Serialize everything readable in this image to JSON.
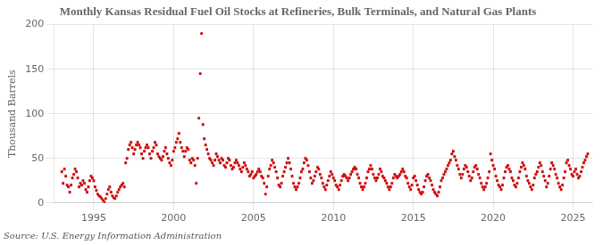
{
  "chart_data": {
    "type": "scatter",
    "title": "Monthly Kansas Residual Fuel Oil Stocks at Refineries, Bulk Terminals, and Natural Gas Plants",
    "y_label": "Thousand Barrels",
    "annotations": [
      "Source: U.S. Energy Information Administration"
    ],
    "color": "#cc0000",
    "marker": "square",
    "grid": true,
    "xlim": [
      1992.5,
      2026.2
    ],
    "xticks": [
      1995,
      2000,
      2005,
      2010,
      2015,
      2020,
      2025
    ],
    "ylim": [
      0,
      200
    ],
    "yticks": [
      0,
      50,
      100,
      150,
      200
    ],
    "x": [
      1993,
      1993.0833,
      1993.1667,
      1993.25,
      1993.3333,
      1993.4167,
      1993.5,
      1993.5833,
      1993.6667,
      1993.75,
      1993.8333,
      1993.9167,
      1994,
      1994.0833,
      1994.1667,
      1994.25,
      1994.3333,
      1994.4167,
      1994.5,
      1994.5833,
      1994.6667,
      1994.75,
      1994.8333,
      1994.9167,
      1995,
      1995.0833,
      1995.1667,
      1995.25,
      1995.3333,
      1995.4167,
      1995.5,
      1995.5833,
      1995.6667,
      1995.75,
      1995.8333,
      1995.9167,
      1996,
      1996.0833,
      1996.1667,
      1996.25,
      1996.3333,
      1996.4167,
      1996.5,
      1996.5833,
      1996.6667,
      1996.75,
      1996.8333,
      1996.9167,
      1997,
      1997.0833,
      1997.1667,
      1997.25,
      1997.3333,
      1997.4167,
      1997.5,
      1997.5833,
      1997.6667,
      1997.75,
      1997.8333,
      1997.9167,
      1998,
      1998.0833,
      1998.1667,
      1998.25,
      1998.3333,
      1998.4167,
      1998.5,
      1998.5833,
      1998.6667,
      1998.75,
      1998.8333,
      1998.9167,
      1999,
      1999.0833,
      1999.1667,
      1999.25,
      1999.3333,
      1999.4167,
      1999.5,
      1999.5833,
      1999.6667,
      1999.75,
      1999.8333,
      1999.9167,
      2000,
      2000.0833,
      2000.1667,
      2000.25,
      2000.3333,
      2000.4167,
      2000.5,
      2000.5833,
      2000.6667,
      2000.75,
      2000.8333,
      2000.9167,
      2001,
      2001.0833,
      2001.1667,
      2001.25,
      2001.3333,
      2001.4167,
      2001.5,
      2001.5833,
      2001.6667,
      2001.75,
      2001.8333,
      2001.9167,
      2002,
      2002.0833,
      2002.1667,
      2002.25,
      2002.3333,
      2002.4167,
      2002.5,
      2002.5833,
      2002.6667,
      2002.75,
      2002.8333,
      2002.9167,
      2003,
      2003.0833,
      2003.1667,
      2003.25,
      2003.3333,
      2003.4167,
      2003.5,
      2003.5833,
      2003.6667,
      2003.75,
      2003.8333,
      2003.9167,
      2004,
      2004.0833,
      2004.1667,
      2004.25,
      2004.3333,
      2004.4167,
      2004.5,
      2004.5833,
      2004.6667,
      2004.75,
      2004.8333,
      2004.9167,
      2005,
      2005.0833,
      2005.1667,
      2005.25,
      2005.3333,
      2005.4167,
      2005.5,
      2005.5833,
      2005.6667,
      2005.75,
      2005.8333,
      2005.9167,
      2006,
      2006.0833,
      2006.1667,
      2006.25,
      2006.3333,
      2006.4167,
      2006.5,
      2006.5833,
      2006.6667,
      2006.75,
      2006.8333,
      2006.9167,
      2007,
      2007.0833,
      2007.1667,
      2007.25,
      2007.3333,
      2007.4167,
      2007.5,
      2007.5833,
      2007.6667,
      2007.75,
      2007.8333,
      2007.9167,
      2008,
      2008.0833,
      2008.1667,
      2008.25,
      2008.3333,
      2008.4167,
      2008.5,
      2008.5833,
      2008.6667,
      2008.75,
      2008.8333,
      2008.9167,
      2009,
      2009.0833,
      2009.1667,
      2009.25,
      2009.3333,
      2009.4167,
      2009.5,
      2009.5833,
      2009.6667,
      2009.75,
      2009.8333,
      2009.9167,
      2010,
      2010.0833,
      2010.1667,
      2010.25,
      2010.3333,
      2010.4167,
      2010.5,
      2010.5833,
      2010.6667,
      2010.75,
      2010.8333,
      2010.9167,
      2011,
      2011.0833,
      2011.1667,
      2011.25,
      2011.3333,
      2011.4167,
      2011.5,
      2011.5833,
      2011.6667,
      2011.75,
      2011.8333,
      2011.9167,
      2012,
      2012.0833,
      2012.1667,
      2012.25,
      2012.3333,
      2012.4167,
      2012.5,
      2012.5833,
      2012.6667,
      2012.75,
      2012.8333,
      2012.9167,
      2013,
      2013.0833,
      2013.1667,
      2013.25,
      2013.3333,
      2013.4167,
      2013.5,
      2013.5833,
      2013.6667,
      2013.75,
      2013.8333,
      2013.9167,
      2014,
      2014.0833,
      2014.1667,
      2014.25,
      2014.3333,
      2014.4167,
      2014.5,
      2014.5833,
      2014.6667,
      2014.75,
      2014.8333,
      2014.9167,
      2015,
      2015.0833,
      2015.1667,
      2015.25,
      2015.3333,
      2015.4167,
      2015.5,
      2015.5833,
      2015.6667,
      2015.75,
      2015.8333,
      2015.9167,
      2016,
      2016.0833,
      2016.1667,
      2016.25,
      2016.3333,
      2016.4167,
      2016.5,
      2016.5833,
      2016.6667,
      2016.75,
      2016.8333,
      2016.9167,
      2017,
      2017.0833,
      2017.1667,
      2017.25,
      2017.3333,
      2017.4167,
      2017.5,
      2017.5833,
      2017.6667,
      2017.75,
      2017.8333,
      2017.9167,
      2018,
      2018.0833,
      2018.1667,
      2018.25,
      2018.3333,
      2018.4167,
      2018.5,
      2018.5833,
      2018.6667,
      2018.75,
      2018.8333,
      2018.9167,
      2019,
      2019.0833,
      2019.1667,
      2019.25,
      2019.3333,
      2019.4167,
      2019.5,
      2019.5833,
      2019.6667,
      2019.75,
      2019.8333,
      2019.9167,
      2020,
      2020.0833,
      2020.1667,
      2020.25,
      2020.3333,
      2020.4167,
      2020.5,
      2020.5833,
      2020.6667,
      2020.75,
      2020.8333,
      2020.9167,
      2021,
      2021.0833,
      2021.1667,
      2021.25,
      2021.3333,
      2021.4167,
      2021.5,
      2021.5833,
      2021.6667,
      2021.75,
      2021.8333,
      2021.9167,
      2022,
      2022.0833,
      2022.1667,
      2022.25,
      2022.3333,
      2022.4167,
      2022.5,
      2022.5833,
      2022.6667,
      2022.75,
      2022.8333,
      2022.9167,
      2023,
      2023.0833,
      2023.1667,
      2023.25,
      2023.3333,
      2023.4167,
      2023.5,
      2023.5833,
      2023.6667,
      2023.75,
      2023.8333,
      2023.9167,
      2024,
      2024.0833,
      2024.1667,
      2024.25,
      2024.3333,
      2024.4167,
      2024.5,
      2024.5833,
      2024.6667,
      2024.75,
      2024.8333,
      2024.9167,
      2025,
      2025.0833,
      2025.1667,
      2025.25,
      2025.3333,
      2025.4167,
      2025.5,
      2025.5833,
      2025.6667,
      2025.75,
      2025.8333,
      2025.9167
    ],
    "values": [
      35,
      22,
      38,
      30,
      20,
      18,
      12,
      20,
      28,
      32,
      38,
      35,
      28,
      18,
      22,
      20,
      25,
      22,
      15,
      12,
      18,
      25,
      30,
      28,
      25,
      18,
      14,
      10,
      8,
      7,
      5,
      3,
      1,
      5,
      10,
      15,
      18,
      12,
      8,
      6,
      5,
      8,
      12,
      15,
      18,
      20,
      22,
      18,
      45,
      50,
      60,
      65,
      68,
      62,
      55,
      60,
      65,
      68,
      65,
      62,
      55,
      50,
      58,
      62,
      65,
      62,
      55,
      50,
      58,
      62,
      68,
      65,
      55,
      52,
      50,
      48,
      52,
      58,
      62,
      55,
      50,
      45,
      42,
      48,
      58,
      62,
      68,
      72,
      78,
      68,
      62,
      58,
      52,
      58,
      62,
      60,
      48,
      45,
      50,
      48,
      42,
      22,
      50,
      95,
      145,
      190,
      88,
      72,
      65,
      60,
      55,
      50,
      48,
      45,
      42,
      48,
      55,
      52,
      48,
      45,
      50,
      48,
      42,
      40,
      45,
      50,
      48,
      42,
      38,
      40,
      45,
      48,
      45,
      42,
      38,
      35,
      40,
      45,
      42,
      38,
      35,
      30,
      32,
      35,
      28,
      30,
      32,
      35,
      38,
      35,
      30,
      28,
      22,
      10,
      18,
      30,
      38,
      42,
      48,
      45,
      40,
      35,
      28,
      20,
      18,
      22,
      30,
      35,
      40,
      45,
      50,
      45,
      38,
      30,
      22,
      18,
      15,
      18,
      22,
      28,
      35,
      38,
      45,
      50,
      48,
      42,
      35,
      28,
      22,
      25,
      30,
      35,
      40,
      38,
      32,
      28,
      22,
      18,
      15,
      20,
      25,
      30,
      35,
      32,
      28,
      25,
      20,
      18,
      15,
      20,
      25,
      30,
      32,
      30,
      28,
      25,
      28,
      32,
      35,
      38,
      40,
      38,
      32,
      28,
      22,
      18,
      15,
      18,
      22,
      28,
      35,
      38,
      42,
      38,
      32,
      28,
      25,
      28,
      32,
      38,
      35,
      30,
      28,
      25,
      22,
      18,
      15,
      18,
      22,
      28,
      32,
      30,
      28,
      30,
      32,
      35,
      38,
      35,
      30,
      28,
      22,
      18,
      15,
      20,
      28,
      30,
      25,
      20,
      15,
      12,
      10,
      12,
      18,
      25,
      30,
      32,
      28,
      25,
      20,
      15,
      12,
      10,
      8,
      12,
      18,
      25,
      28,
      32,
      35,
      38,
      42,
      45,
      48,
      55,
      58,
      52,
      48,
      42,
      38,
      32,
      28,
      32,
      38,
      42,
      40,
      35,
      30,
      25,
      28,
      35,
      40,
      42,
      38,
      32,
      28,
      22,
      18,
      15,
      18,
      22,
      28,
      35,
      55,
      48,
      42,
      38,
      30,
      25,
      20,
      18,
      15,
      20,
      28,
      35,
      40,
      42,
      38,
      35,
      28,
      25,
      20,
      18,
      22,
      28,
      35,
      40,
      45,
      42,
      38,
      30,
      25,
      22,
      18,
      15,
      20,
      28,
      32,
      35,
      40,
      45,
      42,
      35,
      30,
      25,
      18,
      22,
      30,
      38,
      45,
      42,
      38,
      32,
      28,
      22,
      18,
      15,
      20,
      28,
      35,
      45,
      48,
      42,
      38,
      32,
      30,
      35,
      38,
      32,
      28,
      30,
      35,
      40,
      45,
      48,
      52,
      55
    ]
  }
}
